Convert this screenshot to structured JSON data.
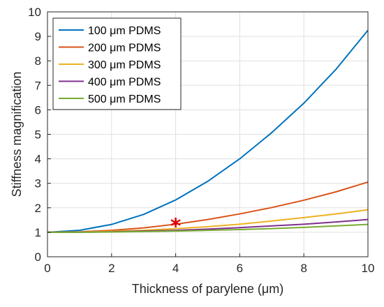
{
  "chart_data": {
    "type": "line",
    "xlabel": "Thickness of parylene (μm)",
    "ylabel": "Stiffness magnification",
    "xlim": [
      0,
      10
    ],
    "ylim": [
      0,
      10
    ],
    "xticks": [
      "0",
      "2",
      "4",
      "6",
      "8",
      "10"
    ],
    "yticks": [
      "0",
      "1",
      "2",
      "3",
      "4",
      "5",
      "6",
      "7",
      "8",
      "9",
      "10"
    ],
    "grid": true,
    "legend_position": "top-left",
    "x": [
      0,
      1,
      2,
      3,
      4,
      5,
      6,
      7,
      8,
      9,
      10
    ],
    "series": [
      {
        "name": "100 μm PDMS",
        "color": "#0072BD",
        "values": [
          1.0,
          1.08,
          1.32,
          1.73,
          2.32,
          3.08,
          4.0,
          5.07,
          6.27,
          7.65,
          9.25
        ]
      },
      {
        "name": "200 μm PDMS",
        "color": "#D95319",
        "values": [
          1.0,
          1.02,
          1.08,
          1.18,
          1.33,
          1.52,
          1.75,
          2.01,
          2.31,
          2.65,
          3.05
        ]
      },
      {
        "name": "300 μm PDMS",
        "color": "#EDB120",
        "values": [
          1.0,
          1.01,
          1.04,
          1.08,
          1.15,
          1.23,
          1.33,
          1.46,
          1.6,
          1.75,
          1.92
        ]
      },
      {
        "name": "400 μm PDMS",
        "color": "#7E2F8E",
        "values": [
          1.0,
          1.0,
          1.02,
          1.05,
          1.08,
          1.13,
          1.19,
          1.26,
          1.33,
          1.42,
          1.52
        ]
      },
      {
        "name": "500 μm PDMS",
        "color": "#77AC30",
        "values": [
          1.0,
          1.0,
          1.01,
          1.03,
          1.05,
          1.08,
          1.11,
          1.15,
          1.2,
          1.26,
          1.32
        ]
      }
    ],
    "annotations": [
      {
        "type": "marker",
        "symbol": "*",
        "x": 4,
        "y": 1.35,
        "color": "#E00000"
      }
    ]
  }
}
